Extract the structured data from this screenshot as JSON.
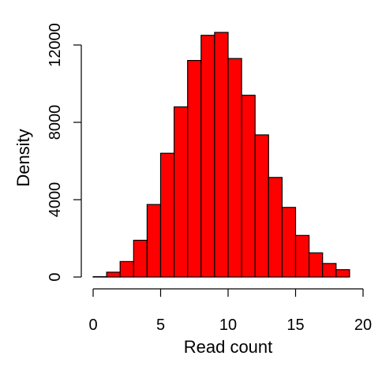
{
  "chart_data": {
    "type": "bar",
    "xlabel": "Read count",
    "ylabel": "Density",
    "xlim": [
      0,
      20
    ],
    "ylim": [
      0,
      12800
    ],
    "xticks": [
      0,
      5,
      10,
      15,
      20
    ],
    "yticks": [
      0,
      4000,
      8000,
      12000
    ],
    "bins": [
      {
        "x0": 0,
        "x1": 1,
        "value": 20
      },
      {
        "x0": 1,
        "x1": 2,
        "value": 250
      },
      {
        "x0": 2,
        "x1": 3,
        "value": 800
      },
      {
        "x0": 3,
        "x1": 4,
        "value": 1900
      },
      {
        "x0": 4,
        "x1": 5,
        "value": 3750
      },
      {
        "x0": 5,
        "x1": 6,
        "value": 6400
      },
      {
        "x0": 6,
        "x1": 7,
        "value": 8800
      },
      {
        "x0": 7,
        "x1": 8,
        "value": 11200
      },
      {
        "x0": 8,
        "x1": 9,
        "value": 12500
      },
      {
        "x0": 9,
        "x1": 10,
        "value": 12650
      },
      {
        "x0": 10,
        "x1": 11,
        "value": 11300
      },
      {
        "x0": 11,
        "x1": 12,
        "value": 9400
      },
      {
        "x0": 12,
        "x1": 13,
        "value": 7350
      },
      {
        "x0": 13,
        "x1": 14,
        "value": 5150
      },
      {
        "x0": 14,
        "x1": 15,
        "value": 3600
      },
      {
        "x0": 15,
        "x1": 16,
        "value": 2150
      },
      {
        "x0": 16,
        "x1": 17,
        "value": 1250
      },
      {
        "x0": 17,
        "x1": 18,
        "value": 700
      },
      {
        "x0": 18,
        "x1": 19,
        "value": 380
      }
    ],
    "bar_color": "#ff0000",
    "grid": false
  }
}
